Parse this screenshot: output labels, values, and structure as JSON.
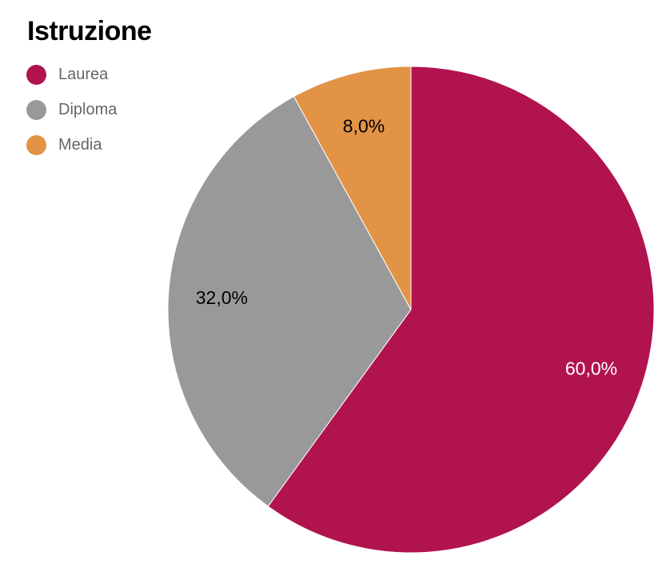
{
  "chart_data": {
    "type": "pie",
    "title": "Istruzione",
    "slices": [
      {
        "name": "Laurea",
        "value": 60.0,
        "label": "60,0%",
        "color": "#B1134F",
        "label_color": "#ffffff"
      },
      {
        "name": "Diploma",
        "value": 32.0,
        "label": "32,0%",
        "color": "#999999",
        "label_color": "#000000"
      },
      {
        "name": "Media",
        "value": 8.0,
        "label": "8,0%",
        "color": "#E29345",
        "label_color": "#000000"
      }
    ],
    "legend_position": "top-left",
    "start": "top",
    "direction": "clockwise"
  }
}
